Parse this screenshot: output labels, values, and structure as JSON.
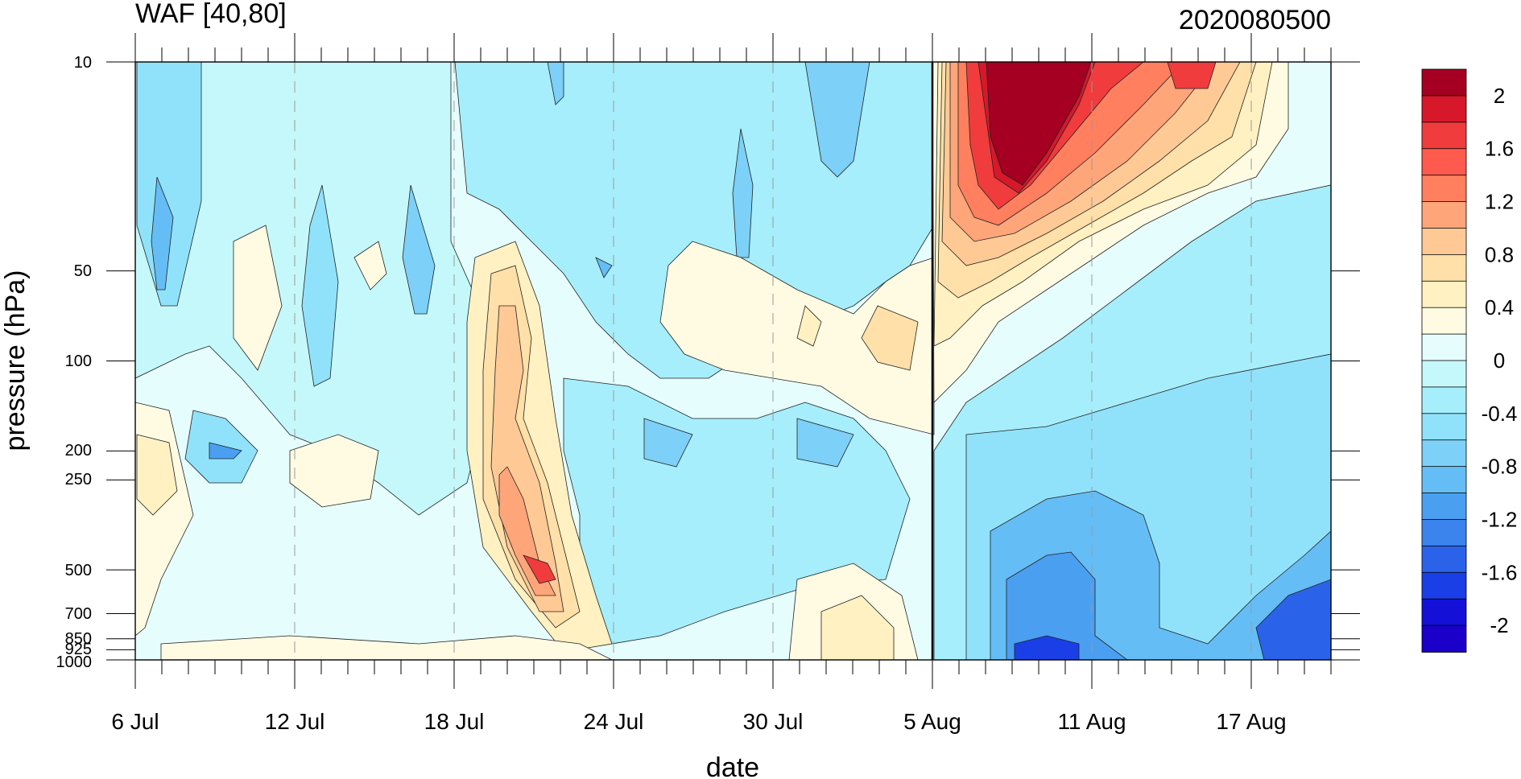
{
  "chart_data": {
    "type": "heatmap",
    "subtype": "time-pressure filled contour",
    "title": "WAF [40,80]",
    "date_stamp": "2020080500",
    "xlabel": "date",
    "ylabel": "pressure (hPa)",
    "x_ticks": [
      "6 Jul",
      "12 Jul",
      "18 Jul",
      "24 Jul",
      "30 Jul",
      "5 Aug",
      "11 Aug",
      "17 Aug"
    ],
    "y_scale": "log",
    "y_ticks": [
      "10",
      "50",
      "100",
      "200",
      "250",
      "500",
      "700",
      "850",
      "925",
      "1000"
    ],
    "y_tick_values": [
      10,
      50,
      100,
      200,
      250,
      500,
      700,
      850,
      925,
      1000
    ],
    "ylim": [
      1000,
      10
    ],
    "reference_line": "5 Aug",
    "colorbar": {
      "labels": [
        "2",
        "1.6",
        "1.2",
        "0.8",
        "0.4",
        "0",
        "-0.4",
        "-0.8",
        "-1.2",
        "-1.6",
        "-2"
      ],
      "colors": [
        "#a50021",
        "#d7182a",
        "#f03c3c",
        "#ff5a4e",
        "#ff7f5e",
        "#ffa57a",
        "#ffc995",
        "#ffe0a8",
        "#fff1c2",
        "#fffbe3",
        "#e6fdfd",
        "#c5f8fb",
        "#a6eefb",
        "#90e2fa",
        "#7dd0f7",
        "#65bdf5",
        "#4a9ff1",
        "#3b84ee",
        "#2a63ea",
        "#1a3fe6",
        "#1410d8",
        "#1a00c8"
      ]
    }
  }
}
